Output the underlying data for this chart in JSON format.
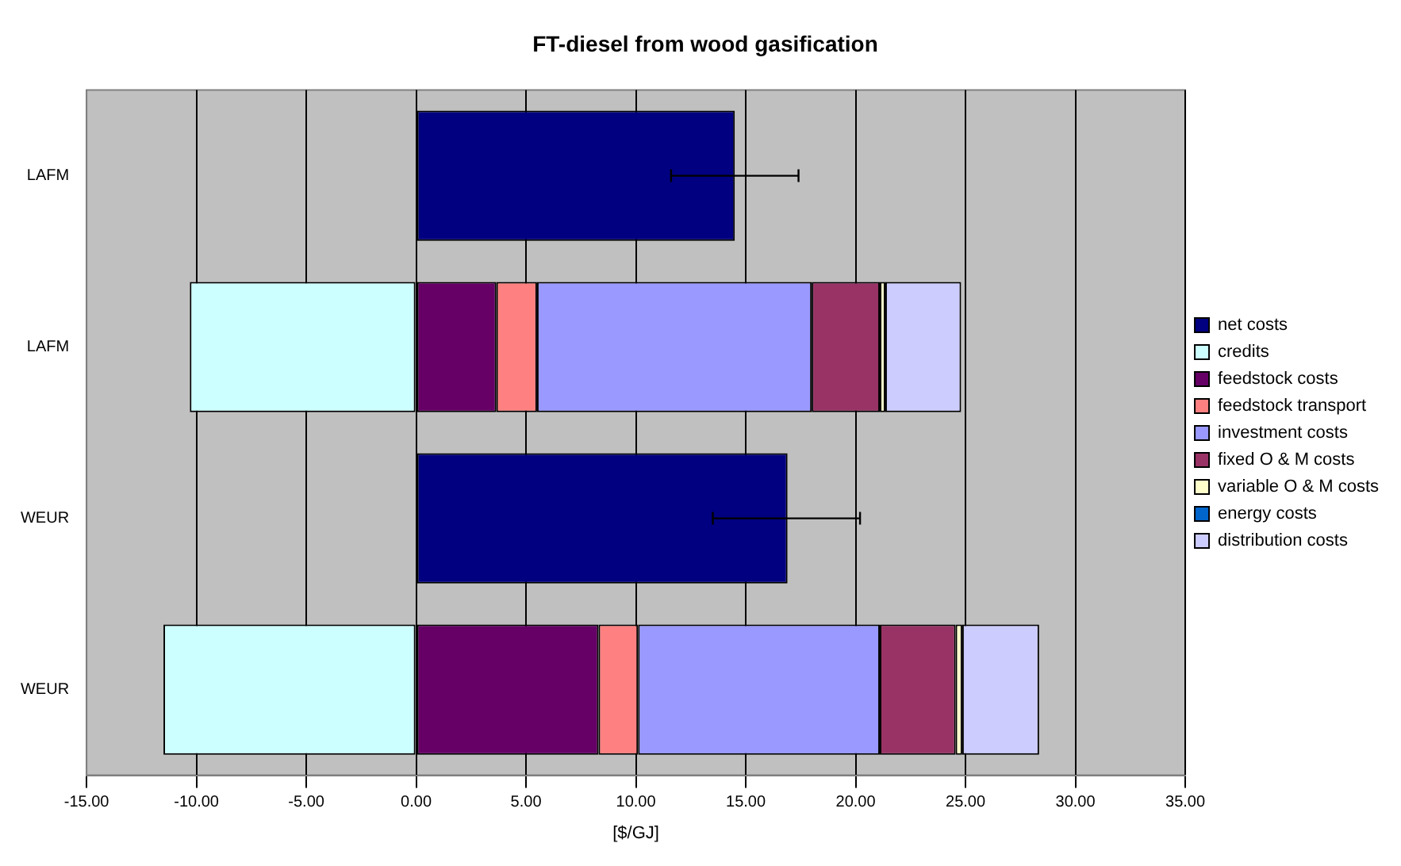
{
  "chart_data": {
    "type": "bar",
    "orientation": "horizontal",
    "stacked": true,
    "title": "FT-diesel from wood gasification",
    "xlabel": "[$/GJ]",
    "categories": [
      "LAFM",
      "LAFM",
      "WEUR",
      "WEUR"
    ],
    "series": [
      {
        "name": "net costs",
        "color": "#000080",
        "values": [
          14.5,
          null,
          16.9,
          null
        ],
        "errors": [
          [
            11.6,
            17.4
          ],
          null,
          [
            13.5,
            20.2
          ],
          null
        ]
      },
      {
        "name": "credits",
        "color": "#ccffff",
        "values": [
          null,
          -10.3,
          null,
          -11.5
        ]
      },
      {
        "name": "feedstock costs",
        "color": "#660066",
        "values": [
          null,
          3.65,
          null,
          8.3
        ]
      },
      {
        "name": "feedstock transport",
        "color": "#ff8080",
        "values": [
          null,
          1.85,
          null,
          1.8
        ]
      },
      {
        "name": "investment costs",
        "color": "#9999ff",
        "values": [
          null,
          12.5,
          null,
          11.0
        ]
      },
      {
        "name": "fixed O & M costs",
        "color": "#993366",
        "values": [
          null,
          3.1,
          null,
          3.45
        ]
      },
      {
        "name": "variable O & M costs",
        "color": "#ffffcc",
        "values": [
          null,
          0.25,
          null,
          0.3
        ]
      },
      {
        "name": "energy costs",
        "color": "#0066cc",
        "values": [
          null,
          0,
          null,
          0
        ]
      },
      {
        "name": "distribution costs",
        "color": "#ccccff",
        "values": [
          null,
          3.45,
          null,
          3.5
        ]
      }
    ],
    "xlim": [
      -15,
      35
    ],
    "xticks": [
      {
        "value": -15,
        "label": "-15.00"
      },
      {
        "value": -10,
        "label": "-10.00"
      },
      {
        "value": -5,
        "label": "-5.00"
      },
      {
        "value": 0,
        "label": "0.00"
      },
      {
        "value": 5,
        "label": "5.00"
      },
      {
        "value": 10,
        "label": "10.00"
      },
      {
        "value": 15,
        "label": "15.00"
      },
      {
        "value": 20,
        "label": "20.00"
      },
      {
        "value": 25,
        "label": "25.00"
      },
      {
        "value": 30,
        "label": "30.00"
      },
      {
        "value": 35,
        "label": "35.00"
      }
    ],
    "grid": "x",
    "legend": "right"
  }
}
